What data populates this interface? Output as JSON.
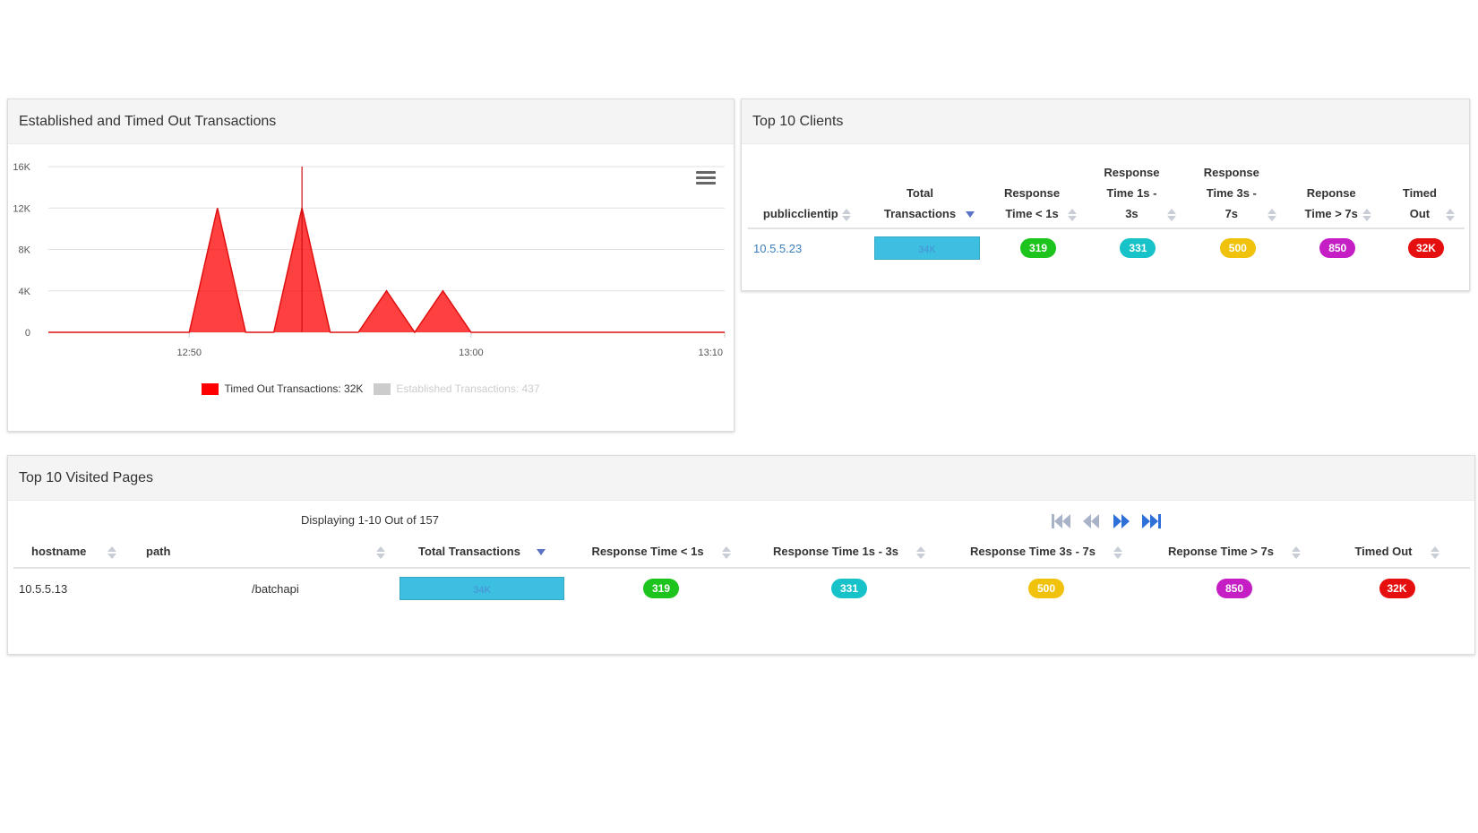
{
  "colors": {
    "green": "#1ec41e",
    "teal": "#17c3c9",
    "yellow": "#f0c20c",
    "purple": "#c41ec4",
    "red": "#e60f0f",
    "bar": "#3cbfe0"
  },
  "chart_panel": {
    "title": "Established and Timed Out Transactions",
    "menu_icon": "hamburger-menu-icon",
    "chart_data": {
      "type": "area",
      "y_ticks": [
        "0",
        "4K",
        "8K",
        "12K",
        "16K"
      ],
      "ylim": [
        0,
        16000
      ],
      "x_ticks": [
        "12:50",
        "13:00",
        "13:10"
      ],
      "grid": true,
      "legend_placement": "bottom-center",
      "series": [
        {
          "name": "Timed Out Transactions: 32K",
          "color": "#ff0000",
          "x_minutes": [
            0,
            5,
            6,
            7,
            8,
            9,
            10,
            11,
            12,
            13,
            14,
            15,
            16,
            24
          ],
          "values": [
            0,
            0,
            12000,
            0,
            0,
            12000,
            0,
            0,
            4000,
            0,
            4000,
            0,
            0,
            0
          ]
        },
        {
          "name": "Established Transactions: 437",
          "color": "#cccccc",
          "visible": false
        }
      ]
    }
  },
  "clients_panel": {
    "title": "Top 10 Clients",
    "columns": [
      "publicclientip",
      "Total Transactions",
      "Response Time < 1s",
      "Response Time 1s - 3s",
      "Response Time 3s - 7s",
      "Reponse Time > 7s",
      "Timed Out"
    ],
    "rows": [
      {
        "ip": "10.5.5.23",
        "total": "34K",
        "lt1": "319",
        "r1to3": "331",
        "r3to7": "500",
        "gt7": "850",
        "timed_out": "32K"
      }
    ]
  },
  "pages_panel": {
    "title": "Top 10 Visited Pages",
    "displaying": "Displaying 1-10 Out of 157",
    "pager_icons": [
      "first-page-icon",
      "previous-page-icon",
      "next-page-icon",
      "last-page-icon"
    ],
    "columns": [
      "hostname",
      "path",
      "Total Transactions",
      "Response Time < 1s",
      "Response Time 1s - 3s",
      "Response Time 3s - 7s",
      "Reponse Time > 7s",
      "Timed Out"
    ],
    "rows": [
      {
        "hostname": "10.5.5.13",
        "path": "/batchapi",
        "total": "34K",
        "lt1": "319",
        "r1to3": "331",
        "r3to7": "500",
        "gt7": "850",
        "timed_out": "32K"
      }
    ]
  }
}
